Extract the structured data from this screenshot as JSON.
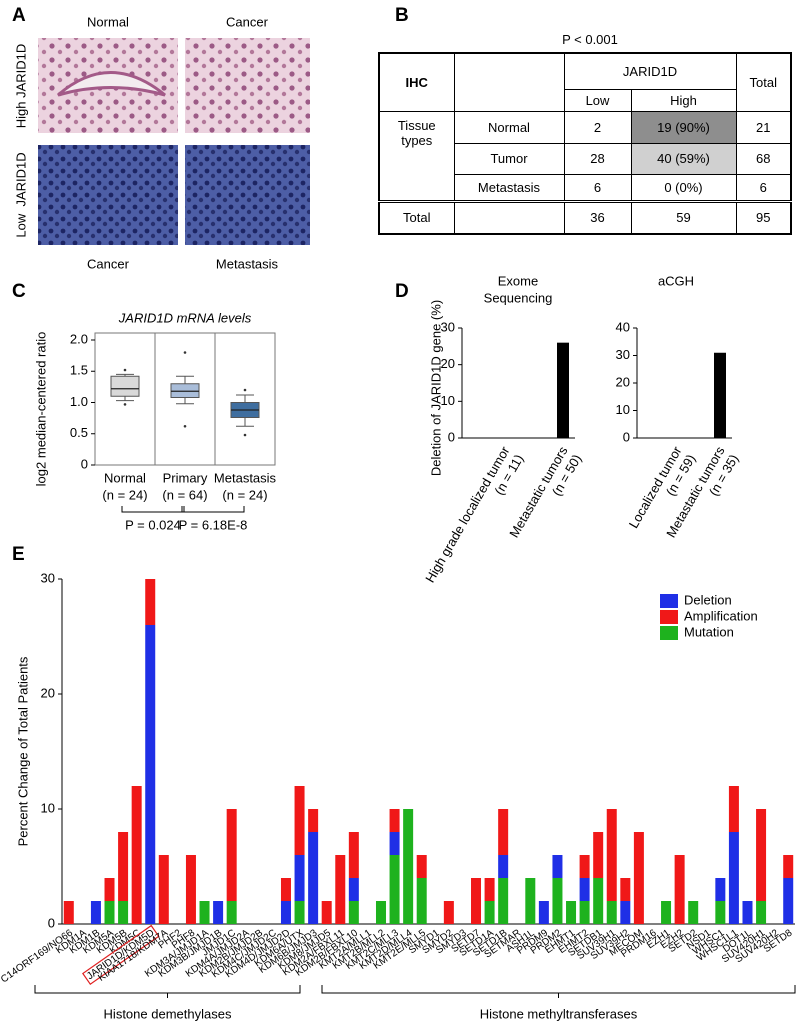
{
  "panel_labels": [
    "A",
    "B",
    "C",
    "D",
    "E"
  ],
  "panel_a": {
    "column_labels_top": [
      "Normal",
      "Cancer"
    ],
    "column_labels_bottom": [
      "Cancer",
      "Metastasis"
    ],
    "row_labels": [
      "High JARID1D",
      "Low  JARID1D"
    ]
  },
  "table": {
    "title": "P < 0.001",
    "header": [
      "IHC",
      "JARID1D",
      "Total"
    ],
    "subheader": [
      "Low",
      "High"
    ],
    "group_label": "Tissue types",
    "rows": [
      [
        "Normal",
        2,
        "19 (90%)",
        21
      ],
      [
        "Tumor",
        28,
        "40 (59%)",
        68
      ],
      [
        "Metastasis",
        6,
        "0 (0%)",
        6
      ]
    ],
    "total_row": [
      "Total",
      36,
      59,
      95
    ]
  },
  "chart_data": [
    {
      "type": "box",
      "title": "JARID1D mRNA levels",
      "y_label": "log2 median-centered ratio",
      "categories": [
        "Normal",
        "Primary",
        "Metastasis"
      ],
      "n_labels": [
        "(n = 24)",
        "(n = 64)",
        "(n = 24)"
      ],
      "colors": [
        "#d9d9d9",
        "#a9bdd9",
        "#3f6e9f"
      ],
      "boxes": [
        {
          "whisker_low": 1.03,
          "q1": 1.1,
          "median": 1.22,
          "q3": 1.42,
          "whisker_high": 1.45,
          "outliers": [
            0.97,
            1.52
          ]
        },
        {
          "whisker_low": 0.98,
          "q1": 1.08,
          "median": 1.18,
          "q3": 1.3,
          "whisker_high": 1.42,
          "outliers": [
            1.8,
            0.62
          ]
        },
        {
          "whisker_low": 0.62,
          "q1": 0.76,
          "median": 0.88,
          "q3": 1.0,
          "whisker_high": 1.12,
          "outliers": [
            1.2,
            0.48
          ]
        }
      ],
      "ylim": [
        0,
        2
      ],
      "yticks": [
        0,
        0.5,
        {
          "value": 1,
          "label": "1.0"
        },
        1.5,
        {
          "value": 2,
          "label": "2.0"
        }
      ],
      "annotations": [
        "P = 0.024",
        "P = 6.18E-8"
      ]
    },
    {
      "type": "bar",
      "title": [
        "Exome",
        "Sequencing"
      ],
      "y_label": "Deletion of JARID1D gene (%)",
      "categories": [
        "High grade localized tumor",
        "Metastatic tumors"
      ],
      "n_labels": [
        "(n = 11)",
        "(n = 50)"
      ],
      "values": [
        0,
        26
      ],
      "color": "#000000",
      "ylim": [
        0,
        30
      ],
      "yticks": [
        0,
        10,
        20,
        30
      ]
    },
    {
      "type": "bar",
      "title": [
        "aCGH"
      ],
      "categories": [
        "Localized tumor",
        "Metastatic tumors"
      ],
      "n_labels": [
        "(n = 59)",
        "(n = 35)"
      ],
      "values": [
        0,
        31
      ],
      "color": "#000000",
      "ylim": [
        0,
        40
      ],
      "yticks": [
        0,
        10,
        20,
        30,
        40
      ]
    },
    {
      "type": "stacked_bar",
      "y_label": "Percent Change of Total Patients",
      "categories": [
        "C14ORF169/NO66",
        "KDM1A",
        "KDM1B",
        "KDM5A",
        "KDM5B",
        "KDM5C",
        "JARID1D/KDM5D",
        "KIAA1718/KDM7A",
        "PHF2",
        "PHF8",
        "KDM3A/JMJD1A",
        "KDM3B/JMJD1B",
        "JMJD1C",
        "KDM4A/JMJD2A",
        "KDM2B/JMJD2B",
        "KDM4C/JMJD2C",
        "KDM4D/JMJD2D",
        "KDM6A/UTX",
        "KDM6B/JMJD3",
        "KDM8/JMJD5",
        "KDM2A/FBXL11",
        "KDM2B/FBXL10",
        "KMT2A/MLL1",
        "KMT2B/MLL2",
        "KMT2C/MLL3",
        "KMT2D/MLL4",
        "KMT2E/MLL5",
        "SMYD1",
        "SMYD2",
        "SMYD3",
        "SETD7",
        "SETD1A",
        "SETD1B",
        "SETMAR",
        "ASH1L",
        "PRDM9",
        "PRDM2",
        "EHMT1",
        "EHMT2",
        "SETDB1",
        "SUV39H1",
        "SUV39H2",
        "MECOM",
        "PRDM16",
        "EZH1",
        "EZH2",
        "SETD2",
        "NSD1",
        "WHSC1",
        "WHSC1L1",
        "DOT1L",
        "SUV420H1",
        "SUV420H2",
        "SETD8"
      ],
      "series": [
        {
          "name": "Deletion",
          "color": "#1f2fe6",
          "values": [
            0,
            0,
            2,
            0,
            0,
            0,
            26,
            0,
            0,
            0,
            0,
            2,
            0,
            0,
            0,
            0,
            2,
            4,
            8,
            0,
            0,
            2,
            0,
            0,
            2,
            0,
            0,
            0,
            0,
            0,
            0,
            0,
            2,
            0,
            0,
            2,
            2,
            0,
            2,
            0,
            0,
            2,
            0,
            0,
            0,
            0,
            0,
            0,
            2,
            8,
            2,
            0,
            0,
            4
          ]
        },
        {
          "name": "Amplification",
          "color": "#f01818",
          "values": [
            2,
            0,
            0,
            2,
            6,
            12,
            4,
            6,
            0,
            6,
            0,
            0,
            8,
            0,
            0,
            0,
            2,
            6,
            2,
            2,
            6,
            4,
            0,
            0,
            2,
            0,
            2,
            0,
            2,
            0,
            4,
            2,
            4,
            0,
            0,
            0,
            0,
            0,
            2,
            4,
            8,
            2,
            8,
            0,
            0,
            6,
            0,
            0,
            0,
            4,
            0,
            8,
            0,
            2
          ]
        },
        {
          "name": "Mutation",
          "color": "#1eb21e",
          "values": [
            0,
            0,
            0,
            2,
            2,
            0,
            0,
            0,
            0,
            0,
            2,
            0,
            2,
            0,
            0,
            0,
            0,
            2,
            0,
            0,
            0,
            2,
            0,
            2,
            6,
            10,
            4,
            0,
            0,
            0,
            0,
            2,
            4,
            0,
            4,
            0,
            4,
            2,
            2,
            4,
            2,
            0,
            0,
            0,
            2,
            0,
            2,
            0,
            2,
            0,
            0,
            2,
            0,
            0
          ]
        }
      ],
      "ylim": [
        0,
        30
      ],
      "yticks": [
        0,
        10,
        20,
        30
      ],
      "legend": "upper right",
      "highlight_category": 6,
      "groups": [
        "Histone demethylases",
        "Histone methyltransferases"
      ]
    }
  ]
}
